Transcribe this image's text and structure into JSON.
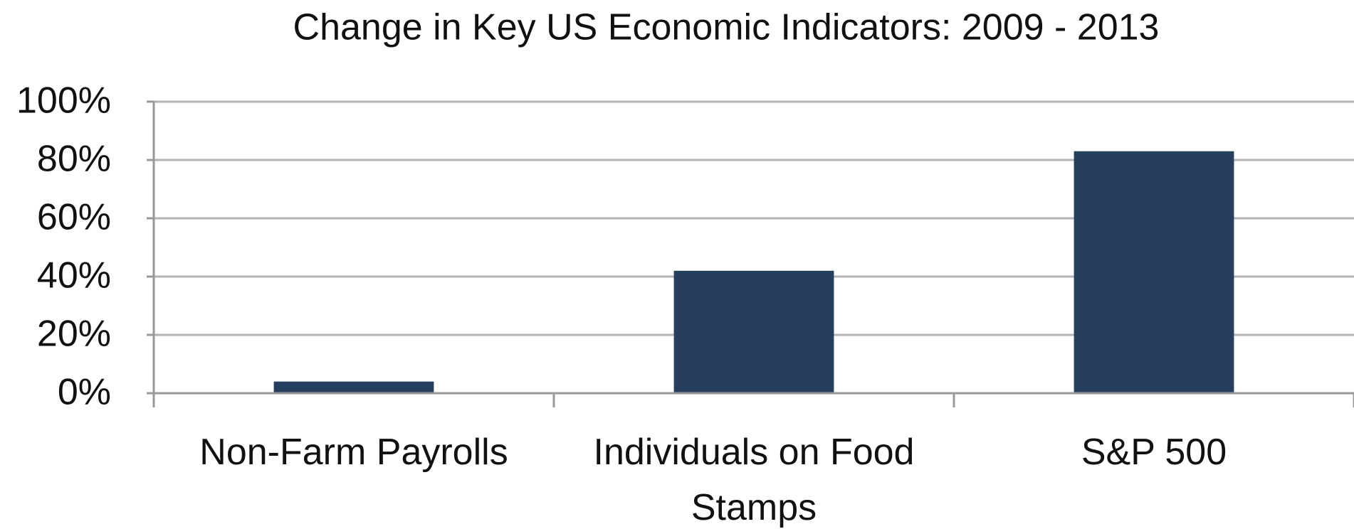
{
  "chart_data": {
    "type": "bar",
    "title": "Change in Key US Economic Indicators: 2009 - 2013",
    "categories": [
      "Non-Farm Payrolls",
      "Individuals on Food Stamps",
      "S&P 500"
    ],
    "values": [
      4,
      42,
      83
    ],
    "color": "#263f5f",
    "ylim": [
      0,
      100
    ],
    "yticks": [
      {
        "value": 0,
        "label": "0%"
      },
      {
        "value": 20,
        "label": "20%"
      },
      {
        "value": 40,
        "label": "40%"
      },
      {
        "value": 60,
        "label": "60%"
      },
      {
        "value": 80,
        "label": "80%"
      },
      {
        "value": 100,
        "label": "100%"
      }
    ],
    "grid": true
  }
}
